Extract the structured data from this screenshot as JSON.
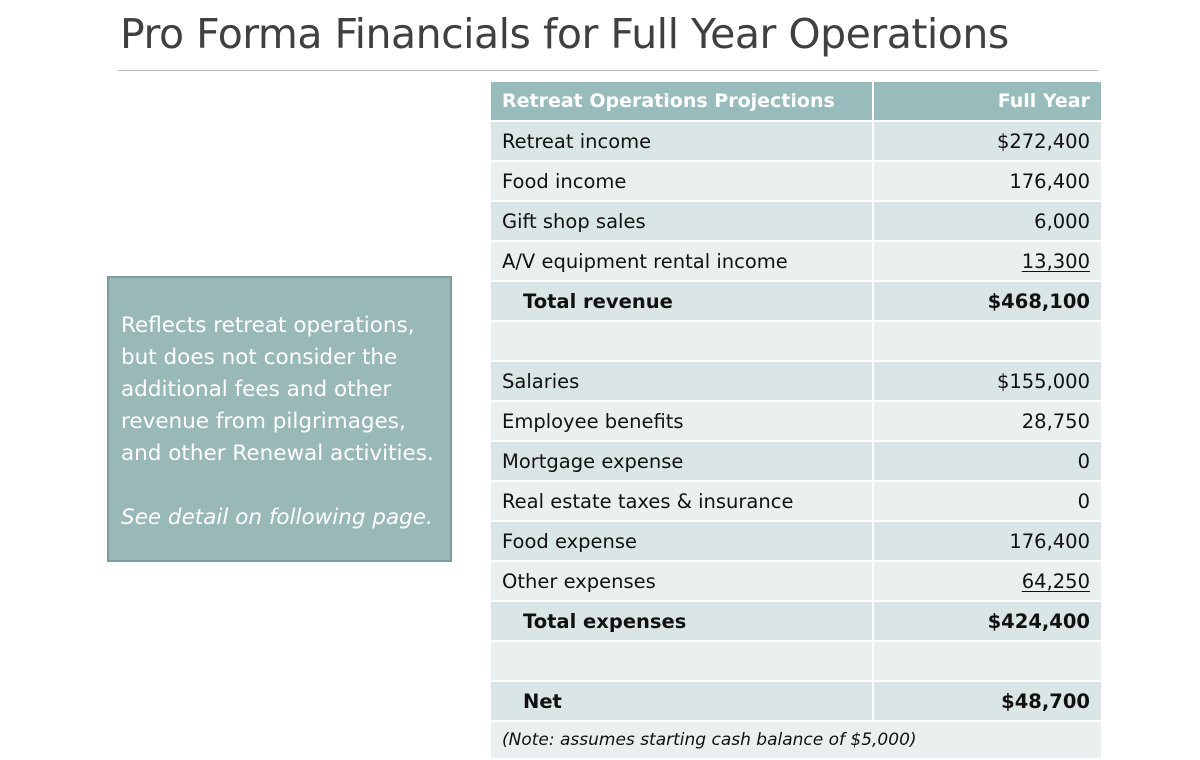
{
  "slide": {
    "title": "Pro Forma Financials for Full Year Operations"
  },
  "callout": {
    "text": "Reflects retreat operations, but does not consider the additional fees and other revenue from pilgrimages, and other Renewal activities.",
    "detail": "See detail on following page."
  },
  "table": {
    "headers": [
      "Retreat Operations Projections",
      "Full Year"
    ],
    "rows": [
      {
        "label": "Retreat income",
        "value": "$272,400"
      },
      {
        "label": "Food income",
        "value": "176,400"
      },
      {
        "label": "Gift shop sales",
        "value": "6,000"
      },
      {
        "label": "A/V equipment rental income",
        "value": "13,300"
      },
      {
        "label": "Total revenue",
        "value": "$468,100"
      },
      {
        "label": "",
        "value": ""
      },
      {
        "label": "Salaries",
        "value": "$155,000"
      },
      {
        "label": "Employee benefits",
        "value": "28,750"
      },
      {
        "label": "Mortgage expense",
        "value": "0"
      },
      {
        "label": "Real estate taxes & insurance",
        "value": "0"
      },
      {
        "label": "Food expense",
        "value": "176,400"
      },
      {
        "label": "Other expenses",
        "value": "64,250"
      },
      {
        "label": "Total expenses",
        "value": "$424,400"
      },
      {
        "label": "",
        "value": ""
      },
      {
        "label": "Net",
        "value": "$48,700"
      }
    ],
    "note": "(Note:  assumes starting cash balance of $5,000)"
  }
}
